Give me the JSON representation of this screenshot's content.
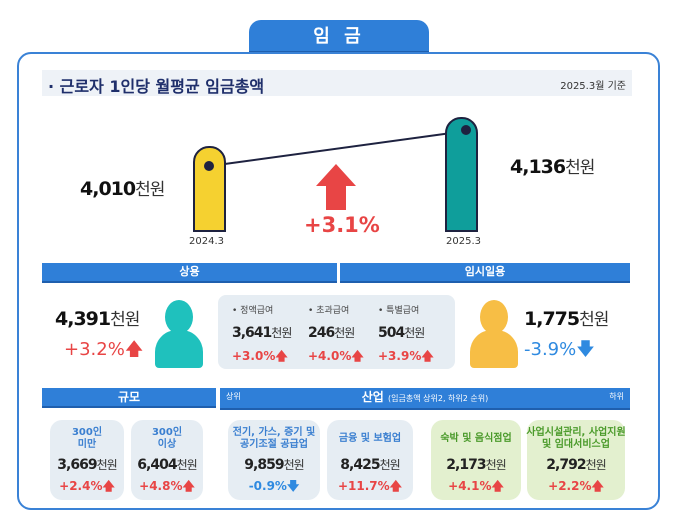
{
  "header": {
    "tab": "임 금"
  },
  "title": {
    "text": "· 근로자 1인당 월평균 임금총액",
    "as_of": "2025.3월 기준"
  },
  "unit": "천원",
  "overall": {
    "prev": {
      "period": "2024.3",
      "value": "4,010"
    },
    "curr": {
      "period": "2025.3",
      "value": "4,136"
    },
    "change": "+3.1%",
    "colors": {
      "prev": "#f5d130",
      "curr": "#0f9e9b",
      "up": "#e84545"
    }
  },
  "regular": {
    "label": "상용",
    "value": "4,391",
    "change": "+3.2%",
    "breakdown": [
      {
        "label": "• 정액급여",
        "value": "3,641",
        "change": "+3.0%"
      },
      {
        "label": "• 초과급여",
        "value": "246",
        "change": "+4.0%"
      },
      {
        "label": "• 특별급여",
        "value": "504",
        "change": "+3.9%"
      }
    ]
  },
  "temporary": {
    "label": "임시일용",
    "value": "1,775",
    "change": "-3.9%"
  },
  "size": {
    "label": "규모",
    "cards": [
      {
        "name": "300인\n미만",
        "value": "3,669",
        "change": "+2.4%"
      },
      {
        "name": "300인\n이상",
        "value": "6,404",
        "change": "+4.8%"
      }
    ]
  },
  "industry": {
    "label": "산업",
    "note": "(임금총액 상위2, 하위2 순위)",
    "top_label": "상위",
    "bottom_label": "하위",
    "cards": [
      {
        "name": "전기, 가스, 증기 및\n공기조절 공급업",
        "value": "9,859",
        "change": "-0.9%"
      },
      {
        "name": "금융 및 보험업",
        "value": "8,425",
        "change": "+11.7%"
      },
      {
        "name": "숙박 및 음식점업",
        "value": "2,173",
        "change": "+4.1%"
      },
      {
        "name": "사업시설관리, 사업지원\n및 임대서비스업",
        "value": "2,792",
        "change": "+2.2%"
      }
    ]
  }
}
